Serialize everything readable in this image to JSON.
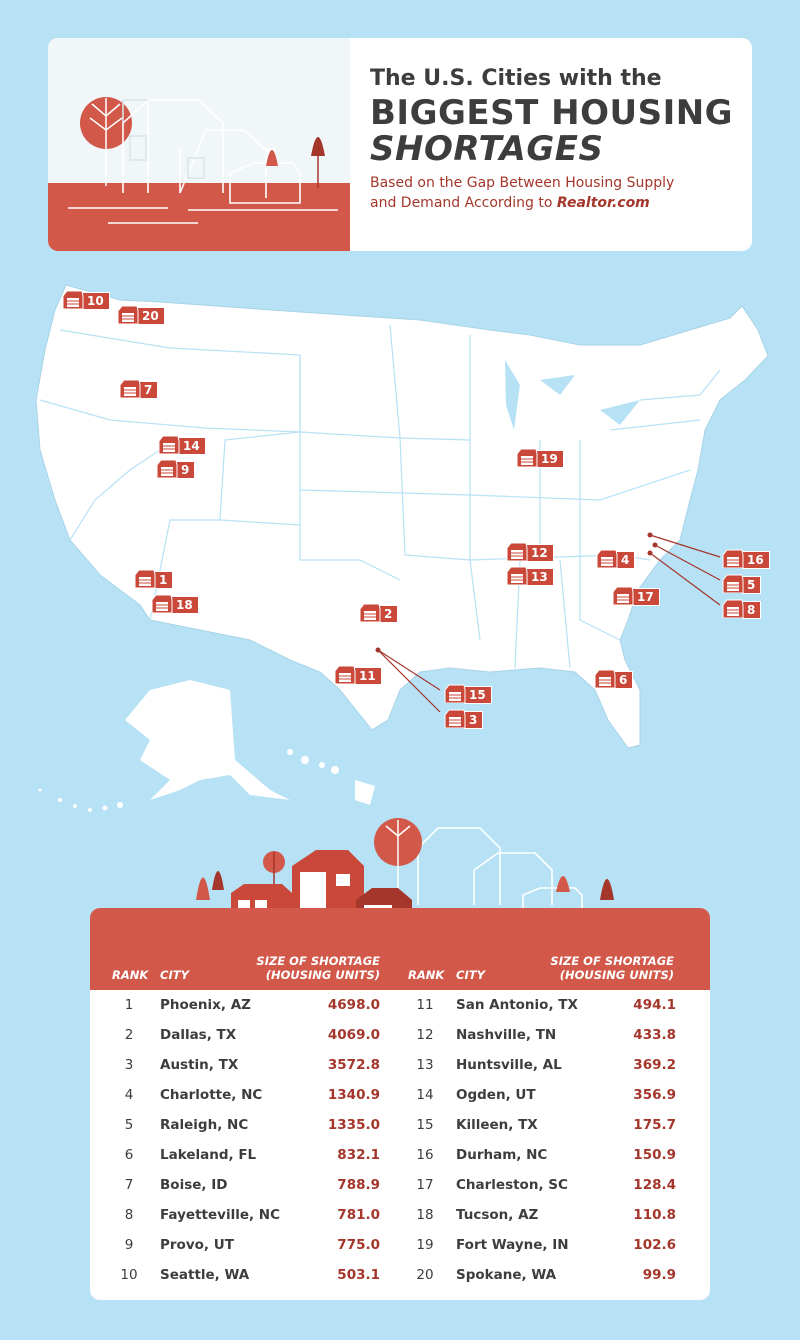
{
  "header": {
    "title_line1": "The U.S. Cities with the",
    "title_line2": "BIGGEST HOUSING",
    "title_line3": "SHORTAGES",
    "subtitle_line1": "Based on the Gap Between Housing Supply",
    "subtitle_line2_prefix": "and Demand According to ",
    "subtitle_source": "Realtor.com"
  },
  "colors": {
    "background": "#b7e2f5",
    "accent": "#d2584a",
    "accent_dark": "#a4362b",
    "map_fill": "#ffffff",
    "state_border": "#b7e2f5"
  },
  "map": {
    "markers": [
      {
        "rank": "10",
        "icon": "house-marker-icon"
      },
      {
        "rank": "20",
        "icon": "house-marker-icon"
      },
      {
        "rank": "7",
        "icon": "house-marker-icon"
      },
      {
        "rank": "14",
        "icon": "house-marker-icon"
      },
      {
        "rank": "9",
        "icon": "house-marker-icon"
      },
      {
        "rank": "1",
        "icon": "house-marker-icon"
      },
      {
        "rank": "18",
        "icon": "house-marker-icon"
      },
      {
        "rank": "2",
        "icon": "house-marker-icon"
      },
      {
        "rank": "11",
        "icon": "house-marker-icon"
      },
      {
        "rank": "15",
        "icon": "house-marker-icon"
      },
      {
        "rank": "3",
        "icon": "house-marker-icon"
      },
      {
        "rank": "19",
        "icon": "house-marker-icon"
      },
      {
        "rank": "12",
        "icon": "house-marker-icon"
      },
      {
        "rank": "13",
        "icon": "house-marker-icon"
      },
      {
        "rank": "4",
        "icon": "house-marker-icon"
      },
      {
        "rank": "17",
        "icon": "house-marker-icon"
      },
      {
        "rank": "6",
        "icon": "house-marker-icon"
      },
      {
        "rank": "16",
        "icon": "house-marker-icon"
      },
      {
        "rank": "5",
        "icon": "house-marker-icon"
      },
      {
        "rank": "8",
        "icon": "house-marker-icon"
      }
    ]
  },
  "table": {
    "headers": {
      "rank": "RANK",
      "city": "CITY",
      "size_line1": "SIZE OF SHORTAGE",
      "size_line2": "(HOUSING UNITS)"
    },
    "left": [
      {
        "rank": "1",
        "city": "Phoenix, AZ",
        "value": "4698.0"
      },
      {
        "rank": "2",
        "city": "Dallas, TX",
        "value": "4069.0"
      },
      {
        "rank": "3",
        "city": "Austin, TX",
        "value": "3572.8"
      },
      {
        "rank": "4",
        "city": "Charlotte, NC",
        "value": "1340.9"
      },
      {
        "rank": "5",
        "city": "Raleigh, NC",
        "value": "1335.0"
      },
      {
        "rank": "6",
        "city": "Lakeland, FL",
        "value": "832.1"
      },
      {
        "rank": "7",
        "city": "Boise, ID",
        "value": "788.9"
      },
      {
        "rank": "8",
        "city": "Fayetteville, NC",
        "value": "781.0"
      },
      {
        "rank": "9",
        "city": "Provo, UT",
        "value": "775.0"
      },
      {
        "rank": "10",
        "city": "Seattle, WA",
        "value": "503.1"
      }
    ],
    "right": [
      {
        "rank": "11",
        "city": "San Antonio, TX",
        "value": "494.1"
      },
      {
        "rank": "12",
        "city": "Nashville, TN",
        "value": "433.8"
      },
      {
        "rank": "13",
        "city": "Huntsville, AL",
        "value": "369.2"
      },
      {
        "rank": "14",
        "city": "Ogden, UT",
        "value": "356.9"
      },
      {
        "rank": "15",
        "city": "Killeen, TX",
        "value": "175.7"
      },
      {
        "rank": "16",
        "city": "Durham, NC",
        "value": "150.9"
      },
      {
        "rank": "17",
        "city": "Charleston, SC",
        "value": "128.4"
      },
      {
        "rank": "18",
        "city": "Tucson, AZ",
        "value": "110.8"
      },
      {
        "rank": "19",
        "city": "Fort Wayne, IN",
        "value": "102.6"
      },
      {
        "rank": "20",
        "city": "Spokane, WA",
        "value": "99.9"
      }
    ]
  }
}
